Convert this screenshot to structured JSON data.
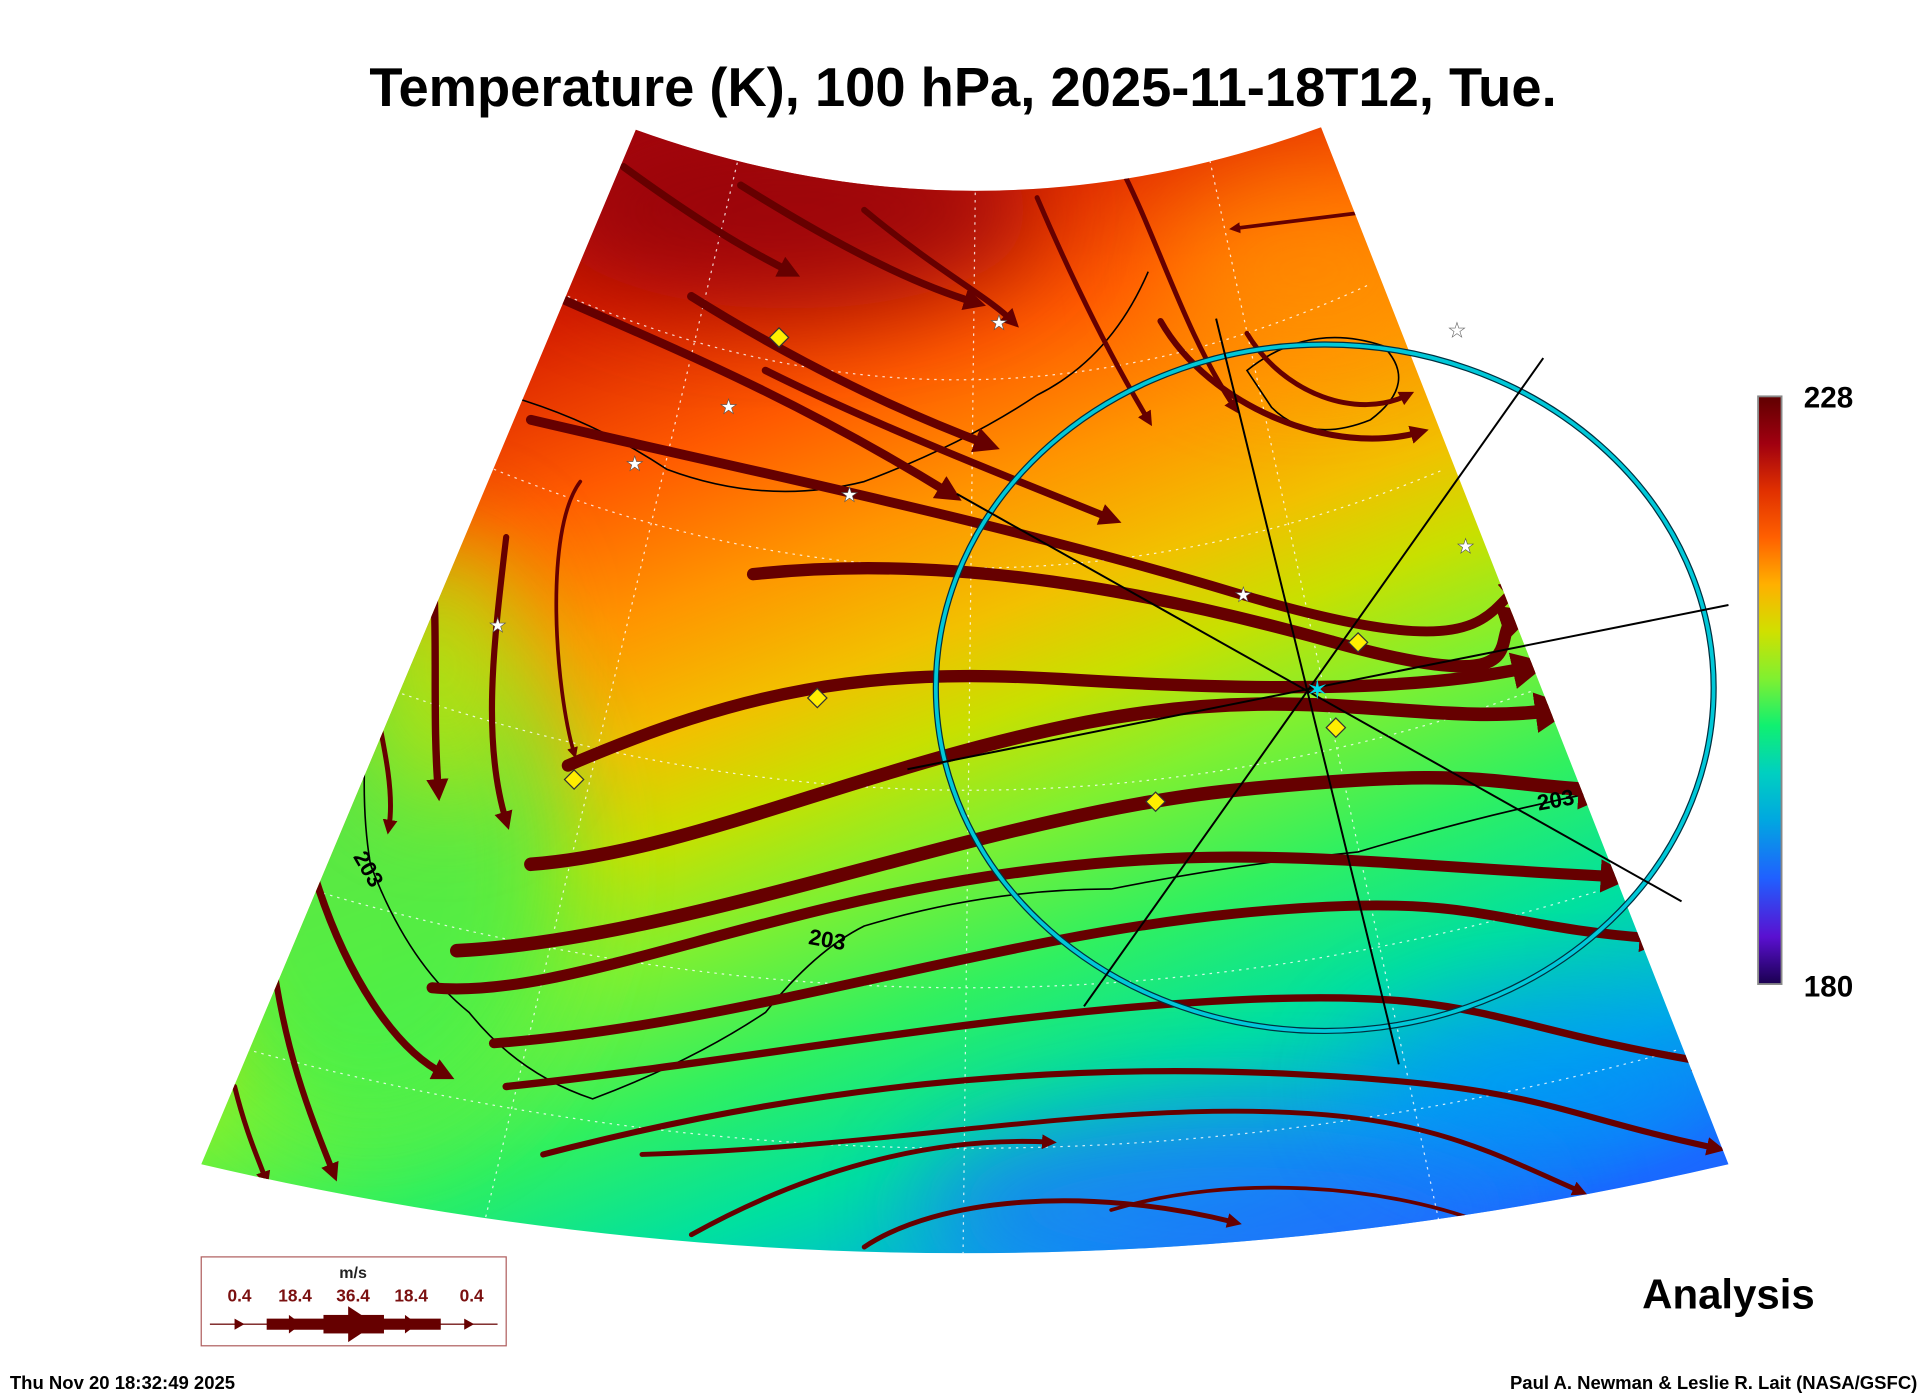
{
  "title": "Temperature (K), 100 hPa, 2025-11-18T12, Tue.",
  "colorbar": {
    "max_label": "228",
    "min_label": "180",
    "min": 180,
    "max": 228,
    "colors": [
      "#1a0050",
      "#5a10d0",
      "#2060ff",
      "#00a8e0",
      "#00d0c0",
      "#10f070",
      "#80f030",
      "#d0e000",
      "#ffb000",
      "#ff6000",
      "#e03000",
      "#a00010",
      "#600000"
    ]
  },
  "contour_labels": [
    "203",
    "203",
    "203",
    "203"
  ],
  "legend": {
    "units": "m/s",
    "values": [
      "0.4",
      "18.4",
      "36.4",
      "18.4",
      "0.4"
    ]
  },
  "product_label": "Analysis",
  "footer": {
    "timestamp": "Thu Nov 20 18:32:49 2025",
    "credit": "Paul A. Newman & Leslie R. Lait (NASA/GSFC)"
  },
  "colors": {
    "streamline": "#660000",
    "circle": "#00c8d8",
    "marker": "#ffee00"
  }
}
